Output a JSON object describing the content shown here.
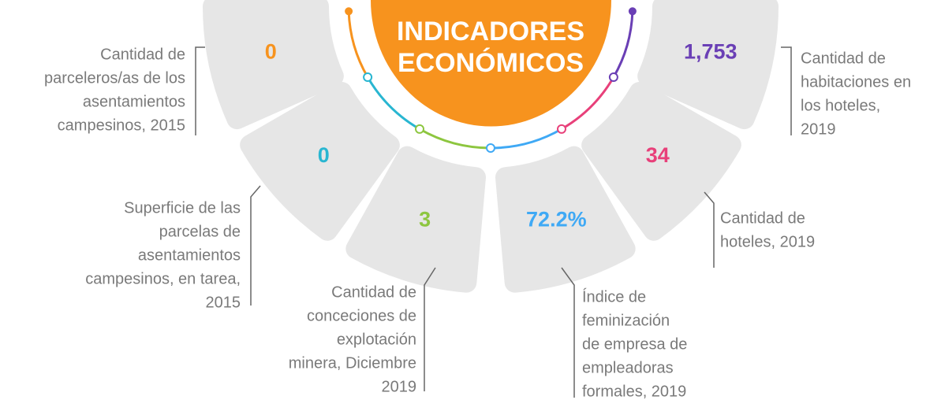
{
  "title": [
    "INDICADORES",
    "ECONÓMICOS"
  ],
  "items": [
    {
      "value": "0",
      "color": "#f7931e",
      "label": [
        "Cantidad de",
        "parceleros/as de los",
        "asentamientos",
        "campesinos, 2015"
      ]
    },
    {
      "value": "0",
      "color": "#29b6d1",
      "label": [
        "Superficie de las",
        "parcelas de",
        "asentamientos",
        "campesinos, en tarea,",
        "2015"
      ]
    },
    {
      "value": "3",
      "color": "#8dc63f",
      "label": [
        "Cantidad de",
        "conceciones de",
        "explotación",
        "minera, Diciembre",
        "2019"
      ]
    },
    {
      "value": "72.2%",
      "color": "#3fa9f5",
      "label": [
        "Índice de",
        "feminización",
        "de empresa de",
        "empleadoras",
        "formales, 2019"
      ]
    },
    {
      "value": "34",
      "color": "#e8407a",
      "label": [
        "Cantidad de",
        "hoteles, 2019"
      ]
    },
    {
      "value": "1,753",
      "color": "#6a3fb5",
      "label": [
        "Cantidad de",
        "habitaciones en",
        "los hoteles,",
        "2019"
      ]
    }
  ]
}
